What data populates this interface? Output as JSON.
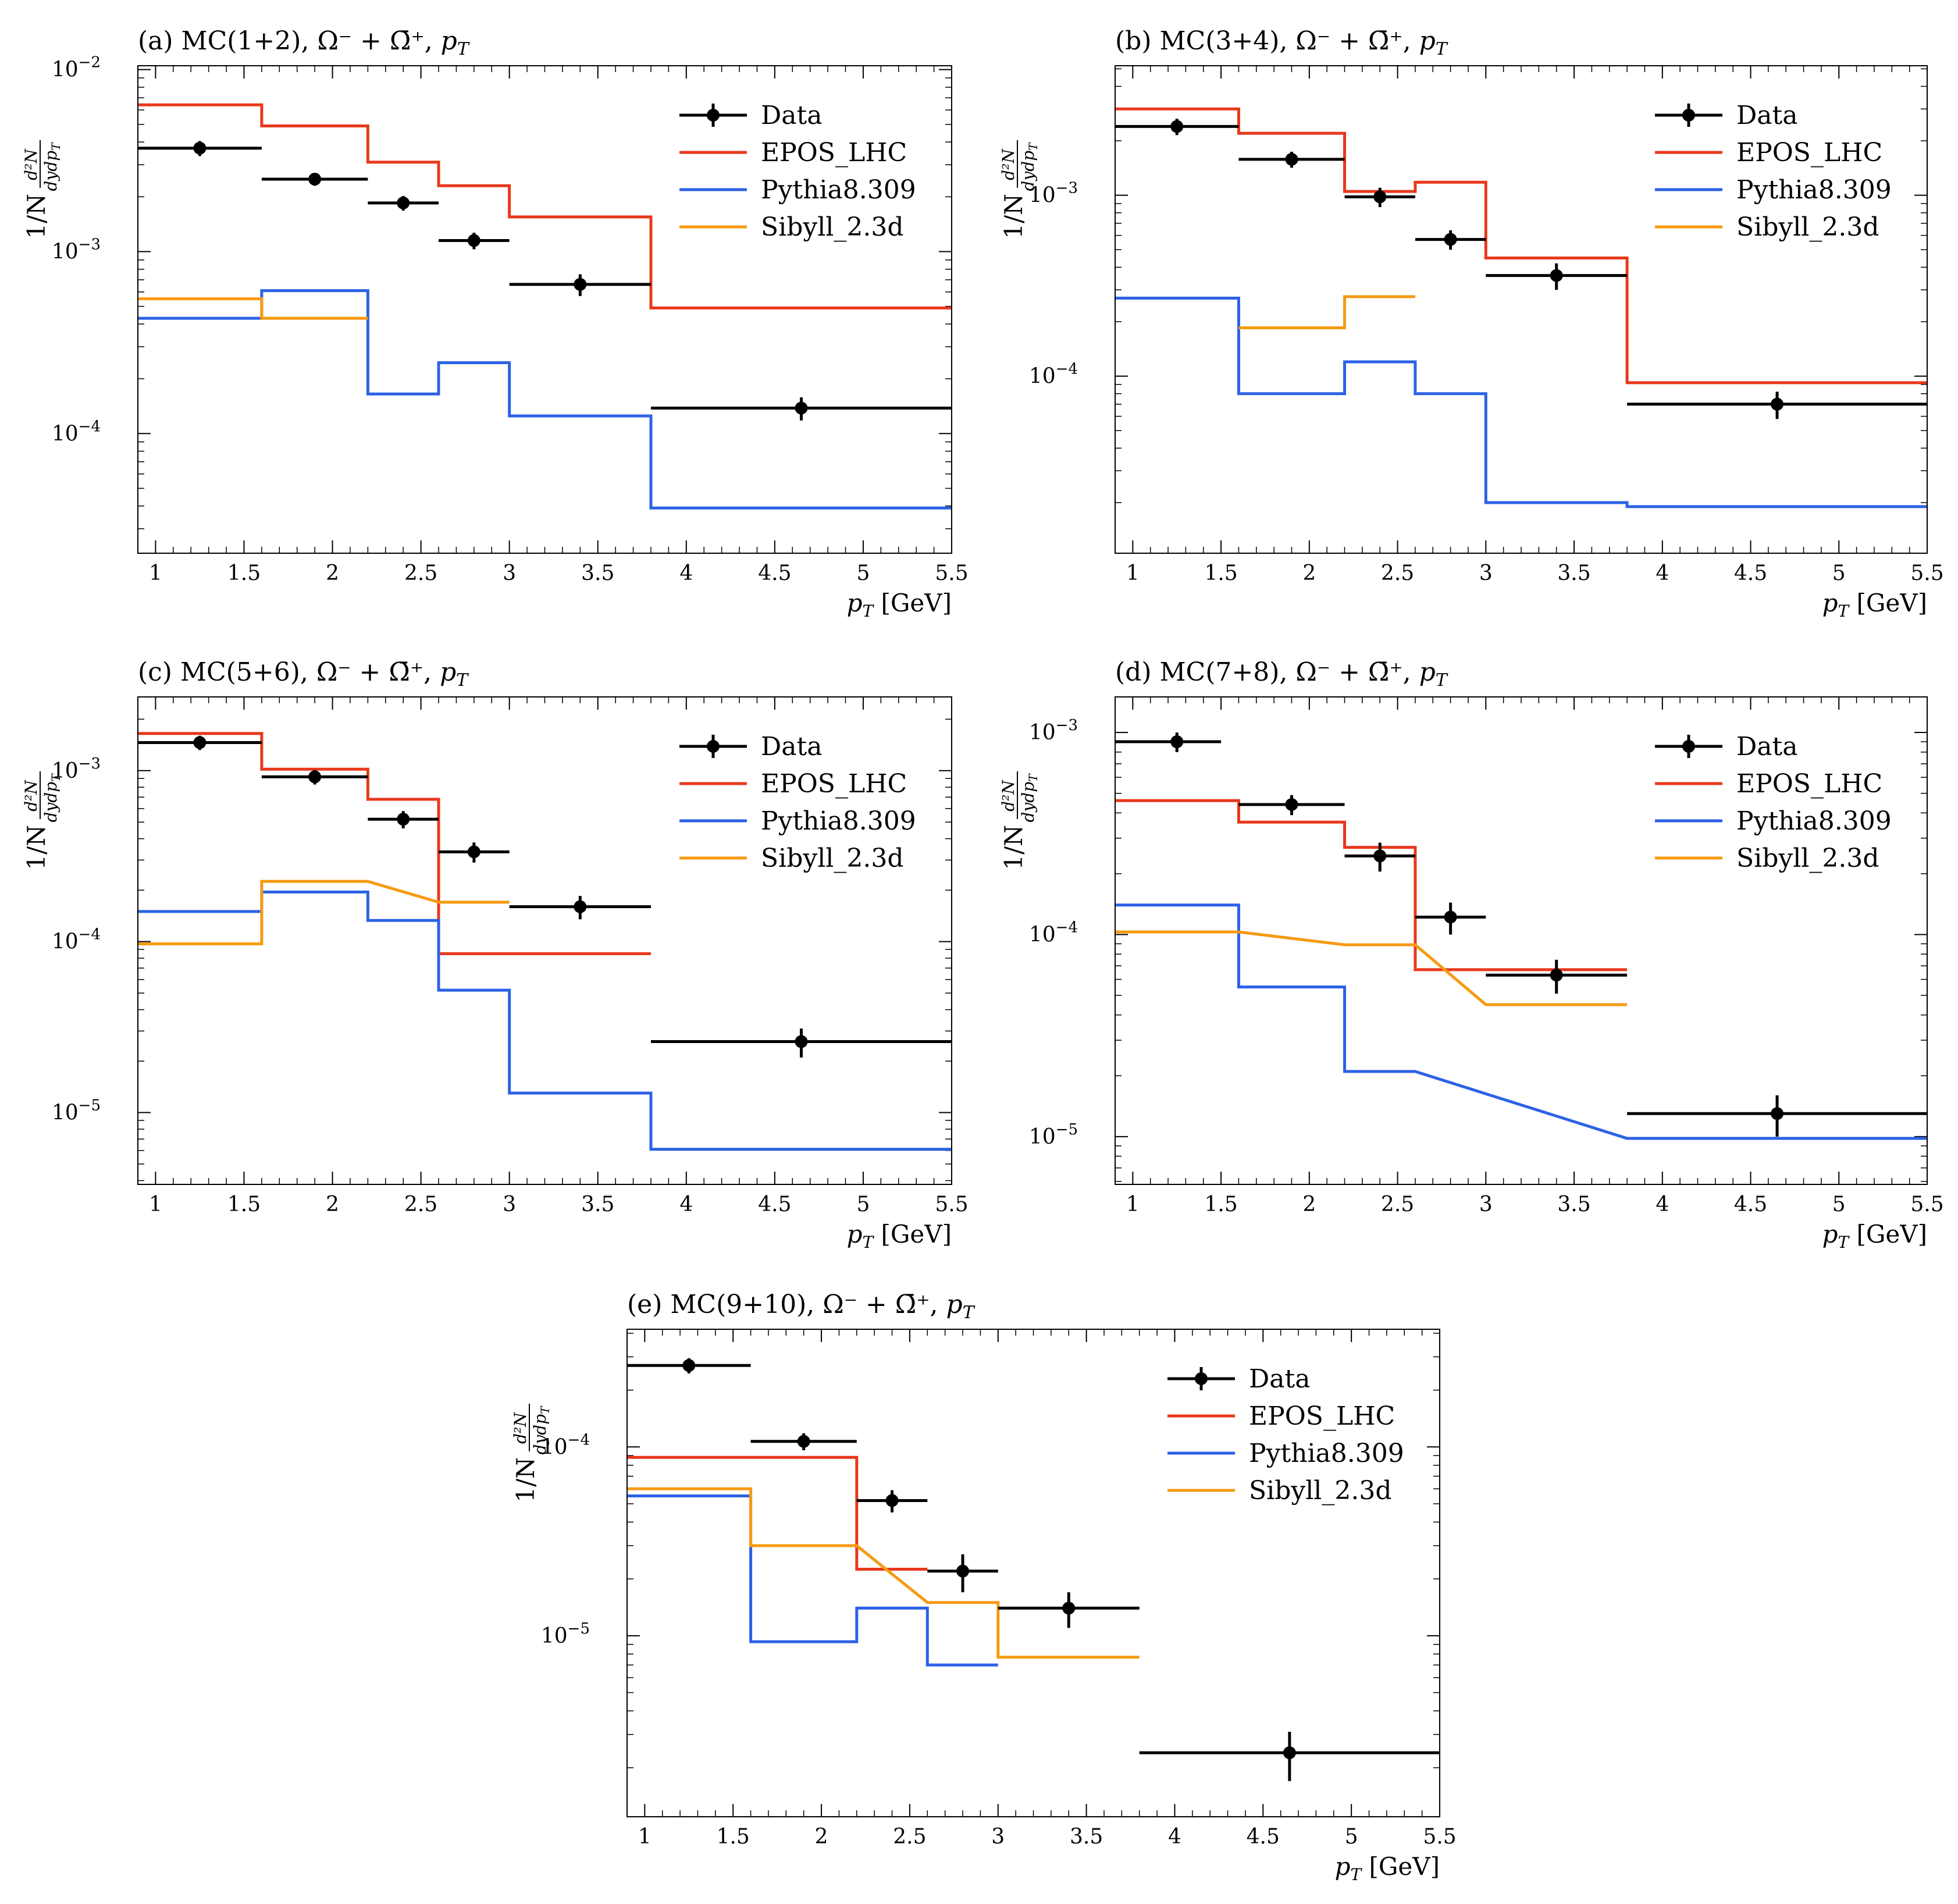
{
  "figure": {
    "xlabel": "p",
    "xlabel_sub": "T",
    "xlabel_unit": "[GeV]",
    "ylabel_prefix": "1/N",
    "ylabel_num": "d²N",
    "ylabel_den": "dydp",
    "ylabel_den_sub": "T",
    "title_suffix_particle": "Ω⁻ + Ω̄⁺,",
    "title_suffix_var": "p",
    "title_suffix_var_sub": "T",
    "legend": [
      "Data",
      "EPOS_LHC",
      "Pythia8.309",
      "Sibyll_2.3d"
    ],
    "colors": {
      "Data": "#000000",
      "EPOS_LHC": "#e8381c",
      "Pythia8.309": "#2d62e6",
      "Sibyll_2.3d": "#f79a12"
    }
  },
  "chart_data": [
    {
      "type": "line",
      "panel": "a",
      "title": "(a) MC(1+2),",
      "xlim": [
        0.9,
        5.5
      ],
      "ylim": [
        2.2e-05,
        0.0105
      ],
      "xticks": [
        "1",
        "1.5",
        "2",
        "2.5",
        "3",
        "3.5",
        "4",
        "4.5",
        "5",
        "5.5"
      ],
      "yticks": [
        {
          "mant": "10",
          "exp": "−2",
          "value": 0.01
        },
        {
          "mant": "10",
          "exp": "−3",
          "value": 0.001
        },
        {
          "mant": "10",
          "exp": "−4",
          "value": 0.0001
        }
      ],
      "data": [
        {
          "xlo": 0.9,
          "xhi": 1.6,
          "x": 1.25,
          "y": 0.0037,
          "err": 0.00035
        },
        {
          "xlo": 1.6,
          "xhi": 2.2,
          "x": 1.9,
          "y": 0.0025,
          "err": 0.0002
        },
        {
          "xlo": 2.2,
          "xhi": 2.6,
          "x": 2.4,
          "y": 0.00185,
          "err": 0.00017
        },
        {
          "xlo": 2.6,
          "xhi": 3.0,
          "x": 2.8,
          "y": 0.00115,
          "err": 0.00012
        },
        {
          "xlo": 3.0,
          "xhi": 3.8,
          "x": 3.4,
          "y": 0.00066,
          "err": 9e-05
        },
        {
          "xlo": 3.8,
          "xhi": 5.5,
          "x": 4.65,
          "y": 0.000138,
          "err": 2e-05
        }
      ],
      "series": [
        {
          "name": "EPOS_LHC",
          "kind": "step",
          "edges": [
            0.9,
            1.6,
            2.2,
            2.6,
            3.0,
            3.8,
            5.5
          ],
          "values": [
            0.0064,
            0.0049,
            0.0031,
            0.0023,
            0.00155,
            0.00049
          ]
        },
        {
          "name": "Pythia8.309",
          "kind": "step",
          "edges": [
            0.9,
            1.6,
            2.2,
            2.6,
            3.0,
            3.8,
            5.5
          ],
          "values": [
            0.00043,
            0.00061,
            0.000165,
            0.000245,
            0.000125,
            3.9e-05
          ]
        },
        {
          "name": "Sibyll_2.3d",
          "kind": "step",
          "edges": [
            0.9,
            1.6,
            2.2
          ],
          "values": [
            0.00055,
            0.00043
          ]
        }
      ]
    },
    {
      "type": "line",
      "panel": "b",
      "title": "(b) MC(3+4),",
      "xlim": [
        0.9,
        5.5
      ],
      "ylim": [
        1.05e-05,
        0.0052
      ],
      "xticks": [
        "1",
        "1.5",
        "2",
        "2.5",
        "3",
        "3.5",
        "4",
        "4.5",
        "5",
        "5.5"
      ],
      "yticks": [
        {
          "mant": "10",
          "exp": "−3",
          "value": 0.001
        },
        {
          "mant": "10",
          "exp": "−4",
          "value": 0.0001
        }
      ],
      "data": [
        {
          "xlo": 0.9,
          "xhi": 1.6,
          "x": 1.25,
          "y": 0.0024,
          "err": 0.00025
        },
        {
          "xlo": 1.6,
          "xhi": 2.2,
          "x": 1.9,
          "y": 0.00158,
          "err": 0.00016
        },
        {
          "xlo": 2.2,
          "xhi": 2.6,
          "x": 2.4,
          "y": 0.00098,
          "err": 0.00012
        },
        {
          "xlo": 2.6,
          "xhi": 3.0,
          "x": 2.8,
          "y": 0.00057,
          "err": 7e-05
        },
        {
          "xlo": 3.0,
          "xhi": 3.8,
          "x": 3.4,
          "y": 0.00036,
          "err": 6e-05
        },
        {
          "xlo": 3.8,
          "xhi": 5.5,
          "x": 4.65,
          "y": 7e-05,
          "err": 1.2e-05
        }
      ],
      "series": [
        {
          "name": "EPOS_LHC",
          "kind": "step",
          "edges": [
            0.9,
            1.6,
            2.2,
            2.6,
            3.0,
            3.8,
            5.5
          ],
          "values": [
            0.003,
            0.0022,
            0.00105,
            0.00118,
            0.00045,
            9.2e-05
          ]
        },
        {
          "name": "Pythia8.309",
          "kind": "step",
          "edges": [
            0.9,
            1.6,
            2.2,
            2.6,
            3.0,
            3.8,
            5.5
          ],
          "values": [
            0.00027,
            8e-05,
            0.00012,
            8e-05,
            2e-05,
            1.9e-05
          ]
        },
        {
          "name": "Sibyll_2.3d",
          "kind": "step",
          "edges": [
            1.6,
            2.2,
            2.6
          ],
          "values": [
            0.000185,
            0.000275
          ]
        }
      ]
    },
    {
      "type": "line",
      "panel": "c",
      "title": "(c) MC(5+6),",
      "xlim": [
        0.9,
        5.5
      ],
      "ylim": [
        3.8e-06,
        0.0027
      ],
      "xticks": [
        "1",
        "1.5",
        "2",
        "2.5",
        "3",
        "3.5",
        "4",
        "4.5",
        "5",
        "5.5"
      ],
      "yticks": [
        {
          "mant": "10",
          "exp": "−3",
          "value": 0.001
        },
        {
          "mant": "10",
          "exp": "−4",
          "value": 0.0001
        },
        {
          "mant": "10",
          "exp": "−5",
          "value": 1e-05
        }
      ],
      "data": [
        {
          "xlo": 0.9,
          "xhi": 1.6,
          "x": 1.25,
          "y": 0.00146,
          "err": 0.00014
        },
        {
          "xlo": 1.6,
          "xhi": 2.2,
          "x": 1.9,
          "y": 0.00092,
          "err": 9e-05
        },
        {
          "xlo": 2.2,
          "xhi": 2.6,
          "x": 2.4,
          "y": 0.00052,
          "err": 6e-05
        },
        {
          "xlo": 2.6,
          "xhi": 3.0,
          "x": 2.8,
          "y": 0.000335,
          "err": 4.5e-05
        },
        {
          "xlo": 3.0,
          "xhi": 3.8,
          "x": 3.4,
          "y": 0.00016,
          "err": 2.5e-05
        },
        {
          "xlo": 3.8,
          "xhi": 5.5,
          "x": 4.65,
          "y": 2.6e-05,
          "err": 5e-06
        }
      ],
      "series": [
        {
          "name": "EPOS_LHC",
          "kind": "step",
          "edges": [
            0.9,
            1.6,
            2.2,
            2.6,
            3.8
          ],
          "values": [
            0.00165,
            0.00102,
            0.00068,
            8.5e-05
          ]
        },
        {
          "name": "Pythia8.309",
          "kind": "step",
          "edges": [
            0.9,
            1.6,
            2.2,
            2.6,
            3.0,
            3.8,
            5.5
          ],
          "values": [
            0.00015,
            0.000195,
            0.000133,
            5.2e-05,
            1.3e-05,
            6.1e-06
          ]
        },
        {
          "name": "Sibyll_2.3d",
          "kind": "poly",
          "points": [
            [
              0.9,
              9.7e-05
            ],
            [
              1.6,
              9.7e-05
            ],
            [
              1.6,
              0.000225
            ],
            [
              2.2,
              0.000225
            ],
            [
              2.6,
              0.00017
            ],
            [
              3.0,
              0.00017
            ]
          ]
        }
      ]
    },
    {
      "type": "line",
      "panel": "d",
      "title": "(d) MC(7+8),",
      "xlim": [
        0.9,
        5.5
      ],
      "ylim": [
        5.8e-06,
        0.0015
      ],
      "xticks": [
        "1",
        "1.5",
        "2",
        "2.5",
        "3",
        "3.5",
        "4",
        "4.5",
        "5",
        "5.5"
      ],
      "yticks": [
        {
          "mant": "10",
          "exp": "−3",
          "value": 0.001
        },
        {
          "mant": "10",
          "exp": "−4",
          "value": 0.0001
        },
        {
          "mant": "10",
          "exp": "−5",
          "value": 1e-05
        }
      ],
      "data": [
        {
          "xlo": 0.9,
          "xhi": 1.5,
          "x": 1.25,
          "y": 0.0009,
          "err": 0.0001
        },
        {
          "xlo": 1.6,
          "xhi": 2.2,
          "x": 1.9,
          "y": 0.00044,
          "err": 5e-05
        },
        {
          "xlo": 2.2,
          "xhi": 2.6,
          "x": 2.4,
          "y": 0.000245,
          "err": 4e-05
        },
        {
          "xlo": 2.6,
          "xhi": 3.0,
          "x": 2.8,
          "y": 0.000122,
          "err": 2.2e-05
        },
        {
          "xlo": 3.0,
          "xhi": 3.8,
          "x": 3.4,
          "y": 6.3e-05,
          "err": 1.2e-05
        },
        {
          "xlo": 3.8,
          "xhi": 5.5,
          "x": 4.65,
          "y": 1.3e-05,
          "err": 3e-06
        }
      ],
      "series": [
        {
          "name": "EPOS_LHC",
          "kind": "step",
          "edges": [
            0.9,
            1.6,
            2.2,
            2.6,
            3.8
          ],
          "values": [
            0.00046,
            0.00036,
            0.00027,
            6.7e-05
          ]
        },
        {
          "name": "Pythia8.309",
          "kind": "poly",
          "points": [
            [
              0.9,
              0.00014
            ],
            [
              1.6,
              0.00014
            ],
            [
              1.6,
              5.5e-05
            ],
            [
              2.2,
              5.5e-05
            ],
            [
              2.2,
              2.1e-05
            ],
            [
              2.6,
              2.1e-05
            ],
            [
              3.8,
              9.8e-06
            ],
            [
              5.5,
              9.8e-06
            ]
          ]
        },
        {
          "name": "Sibyll_2.3d",
          "kind": "poly",
          "points": [
            [
              0.9,
              0.000103
            ],
            [
              1.6,
              0.000103
            ],
            [
              2.2,
              8.9e-05
            ],
            [
              2.6,
              8.9e-05
            ],
            [
              3.0,
              4.5e-05
            ],
            [
              3.8,
              4.5e-05
            ]
          ]
        }
      ]
    },
    {
      "type": "line",
      "panel": "e",
      "title": "(e) MC(9+10),",
      "xlim": [
        0.9,
        5.5
      ],
      "ylim": [
        1.1e-06,
        0.00042
      ],
      "xticks": [
        "1",
        "1.5",
        "2",
        "2.5",
        "3",
        "3.5",
        "4",
        "4.5",
        "5",
        "5.5"
      ],
      "yticks": [
        {
          "mant": "10",
          "exp": "−4",
          "value": 0.0001
        },
        {
          "mant": "10",
          "exp": "−5",
          "value": 1e-05
        }
      ],
      "data": [
        {
          "xlo": 0.9,
          "xhi": 1.6,
          "x": 1.25,
          "y": 0.00027,
          "err": 2.5e-05
        },
        {
          "xlo": 1.6,
          "xhi": 2.2,
          "x": 1.9,
          "y": 0.000107,
          "err": 1.1e-05
        },
        {
          "xlo": 2.2,
          "xhi": 2.6,
          "x": 2.4,
          "y": 5.2e-05,
          "err": 7e-06
        },
        {
          "xlo": 2.6,
          "xhi": 3.0,
          "x": 2.8,
          "y": 2.2e-05,
          "err": 5e-06
        },
        {
          "xlo": 3.0,
          "xhi": 3.8,
          "x": 3.4,
          "y": 1.4e-05,
          "err": 3e-06
        },
        {
          "xlo": 3.8,
          "xhi": 5.5,
          "x": 4.65,
          "y": 2.4e-06,
          "err": 7e-07
        }
      ],
      "series": [
        {
          "name": "EPOS_LHC",
          "kind": "step",
          "edges": [
            0.9,
            1.6,
            2.2,
            2.6
          ],
          "values": [
            8.8e-05,
            8.8e-05,
            2.25e-05
          ]
        },
        {
          "name": "Pythia8.309",
          "kind": "step",
          "edges": [
            0.9,
            1.6,
            2.2,
            2.6,
            3.0
          ],
          "values": [
            5.5e-05,
            9.3e-06,
            1.4e-05,
            7e-06
          ]
        },
        {
          "name": "Sibyll_2.3d",
          "kind": "poly",
          "points": [
            [
              0.9,
              6e-05
            ],
            [
              1.6,
              6e-05
            ],
            [
              1.6,
              3e-05
            ],
            [
              2.2,
              3e-05
            ],
            [
              2.6,
              1.5e-05
            ],
            [
              3.0,
              1.5e-05
            ],
            [
              3.0,
              7.7e-06
            ],
            [
              3.8,
              7.7e-06
            ]
          ]
        }
      ]
    }
  ]
}
